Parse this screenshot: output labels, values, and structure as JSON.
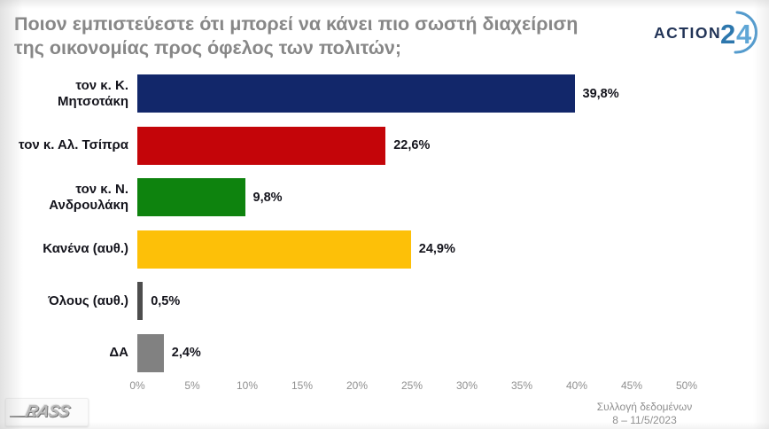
{
  "header": {
    "title_line1": "Ποιον εμπιστεύεστε ότι μπορεί να κάνει πιο σωστή διαχείριση",
    "title_line2": "της οικονομίας προς όφελος των πολιτών;",
    "channel_logo": {
      "text": "ACTION",
      "number": "24",
      "text_color": "#223457",
      "number_color": "#3c86ba",
      "arc_color": "#549bcd"
    }
  },
  "chart_data": {
    "type": "bar",
    "orientation": "horizontal",
    "title": "Ποιον εμπιστεύεστε ότι μπορεί να κάνει πιο σωστή διαχείριση της οικονομίας προς όφελος των πολιτών;",
    "categories": [
      "τον κ. Κ. Μητσοτάκη",
      "τον κ. Αλ. Τσίπρα",
      "τον κ. Ν. Ανδρουλάκη",
      "Κανένα (αυθ.)",
      "Όλους (αυθ.)",
      "ΔΑ"
    ],
    "values": [
      39.8,
      22.6,
      9.8,
      24.9,
      0.5,
      2.4
    ],
    "value_labels": [
      "39,8%",
      "22,6%",
      "9,8%",
      "24,9%",
      "0,5%",
      "2,4%"
    ],
    "bar_colors": [
      "#12276a",
      "#c40509",
      "#0e830e",
      "#fdc008",
      "#4d4d4d",
      "#818181"
    ],
    "xlim": [
      0,
      50
    ],
    "x_tick_values": [
      0,
      5,
      10,
      15,
      20,
      25,
      30,
      35,
      40,
      45,
      50
    ],
    "x_ticks": [
      "0%",
      "5%",
      "10%",
      "15%",
      "20%",
      "25%",
      "30%",
      "35%",
      "40%",
      "45%",
      "50%"
    ],
    "grid": false,
    "legend": false
  },
  "footer": {
    "source_logo": "RASS",
    "note_line1": "Συλλογή δεδομένων",
    "note_line2": "8 – 11/5/2023"
  }
}
